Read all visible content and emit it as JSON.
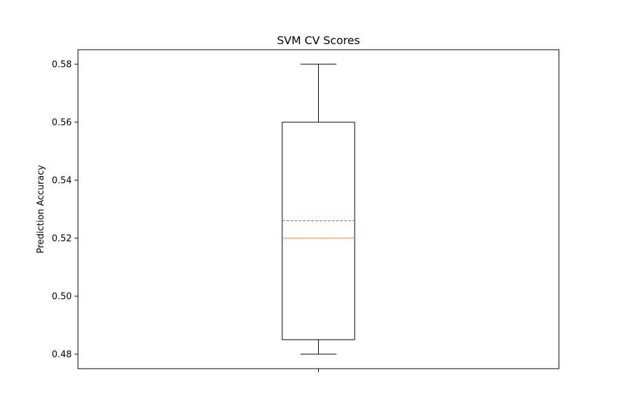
{
  "chart_data": {
    "type": "box",
    "title": "SVM CV Scores",
    "xlabel": "",
    "ylabel": "Prediction Accuracy",
    "ylim": [
      0.475,
      0.585
    ],
    "yticks": [
      0.48,
      0.5,
      0.52,
      0.54,
      0.56,
      0.58
    ],
    "ytick_labels": [
      "0.48",
      "0.50",
      "0.52",
      "0.54",
      "0.56",
      "0.58"
    ],
    "grid": false,
    "legend": "none",
    "box": {
      "whisker_low": 0.48,
      "q1": 0.485,
      "median": 0.52,
      "mean": 0.526,
      "q3": 0.56,
      "whisker_high": 0.58
    },
    "colors": {
      "box": "#000000",
      "median": "#ff7f0e",
      "mean": "#2ca02c"
    }
  }
}
